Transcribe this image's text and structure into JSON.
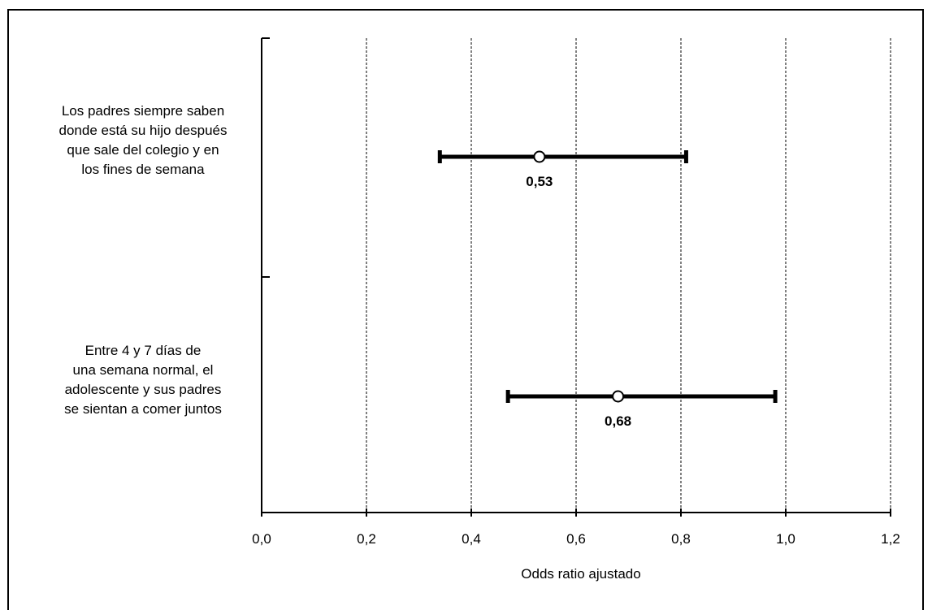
{
  "chart_data": {
    "type": "forest",
    "xlabel": "Odds ratio ajustado",
    "xlim": [
      0,
      1.2
    ],
    "x_ticks": [
      "0,0",
      "0,2",
      "0,4",
      "0,6",
      "0,8",
      "1,0",
      "1,2"
    ],
    "grid": "vertical-dashed",
    "series": [
      {
        "label_lines": [
          "Los padres siempre saben",
          "donde está su hijo después",
          "que sale del colegio y en",
          "los fines de semana"
        ],
        "or": 0.53,
        "or_label": "0,53",
        "ci_low": 0.34,
        "ci_high": 0.81
      },
      {
        "label_lines": [
          "Entre 4 y 7 días de",
          "una semana normal, el",
          "adolescente y sus padres",
          "se sientan a comer juntos"
        ],
        "or": 0.68,
        "or_label": "0,68",
        "ci_low": 0.47,
        "ci_high": 0.98
      }
    ]
  }
}
